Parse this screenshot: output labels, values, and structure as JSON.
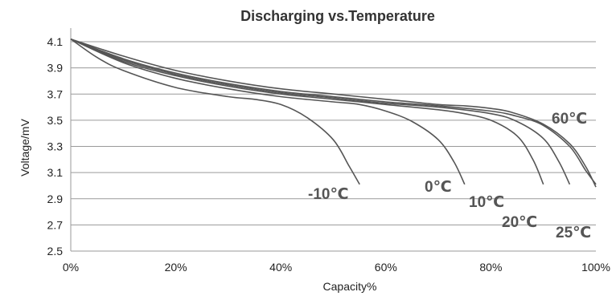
{
  "chart_data": {
    "type": "line",
    "title": "Discharging vs.Temperature",
    "xlabel": "Capacity%",
    "ylabel": "Voltage/mV",
    "xlim": [
      0,
      100
    ],
    "ylim": [
      2.5,
      4.2
    ],
    "x_ticks": [
      "0%",
      "20%",
      "40%",
      "60%",
      "80%",
      "100%"
    ],
    "y_ticks": [
      "2.5",
      "2.7",
      "2.9",
      "3.1",
      "3.3",
      "3.5",
      "3.7",
      "3.9",
      "4.1"
    ],
    "grid": true,
    "line_color": "#555555",
    "series": [
      {
        "name": "-10℃",
        "x": [
          0,
          5,
          10,
          20,
          30,
          35,
          40,
          45,
          50,
          53,
          55
        ],
        "y": [
          4.12,
          3.98,
          3.88,
          3.75,
          3.68,
          3.66,
          3.62,
          3.52,
          3.35,
          3.15,
          3.01
        ]
      },
      {
        "name": "0℃",
        "x": [
          0,
          10,
          20,
          30,
          40,
          50,
          55,
          60,
          65,
          70,
          73,
          75
        ],
        "y": [
          4.12,
          3.94,
          3.82,
          3.74,
          3.68,
          3.64,
          3.62,
          3.57,
          3.49,
          3.35,
          3.18,
          3.01
        ]
      },
      {
        "name": "10℃",
        "x": [
          0,
          10,
          20,
          30,
          40,
          50,
          60,
          70,
          75,
          80,
          85,
          88,
          90
        ],
        "y": [
          4.12,
          3.95,
          3.84,
          3.76,
          3.7,
          3.66,
          3.62,
          3.58,
          3.55,
          3.5,
          3.38,
          3.2,
          3.01
        ]
      },
      {
        "name": "20℃",
        "x": [
          0,
          10,
          20,
          30,
          40,
          50,
          60,
          70,
          80,
          85,
          90,
          93,
          95
        ],
        "y": [
          4.12,
          3.96,
          3.85,
          3.77,
          3.71,
          3.67,
          3.63,
          3.6,
          3.55,
          3.49,
          3.36,
          3.18,
          3.01
        ]
      },
      {
        "name": "25℃",
        "x": [
          0,
          10,
          20,
          30,
          40,
          50,
          60,
          70,
          80,
          85,
          90,
          95,
          98,
          100
        ],
        "y": [
          4.12,
          3.97,
          3.86,
          3.78,
          3.72,
          3.68,
          3.64,
          3.61,
          3.57,
          3.53,
          3.46,
          3.3,
          3.12,
          3.01
        ]
      },
      {
        "name": "60℃",
        "x": [
          0,
          10,
          20,
          30,
          40,
          50,
          60,
          70,
          75,
          80
        ],
        "y": [
          4.12,
          3.99,
          3.88,
          3.8,
          3.74,
          3.7,
          3.66,
          3.62,
          3.61,
          3.59
        ]
      }
    ]
  }
}
